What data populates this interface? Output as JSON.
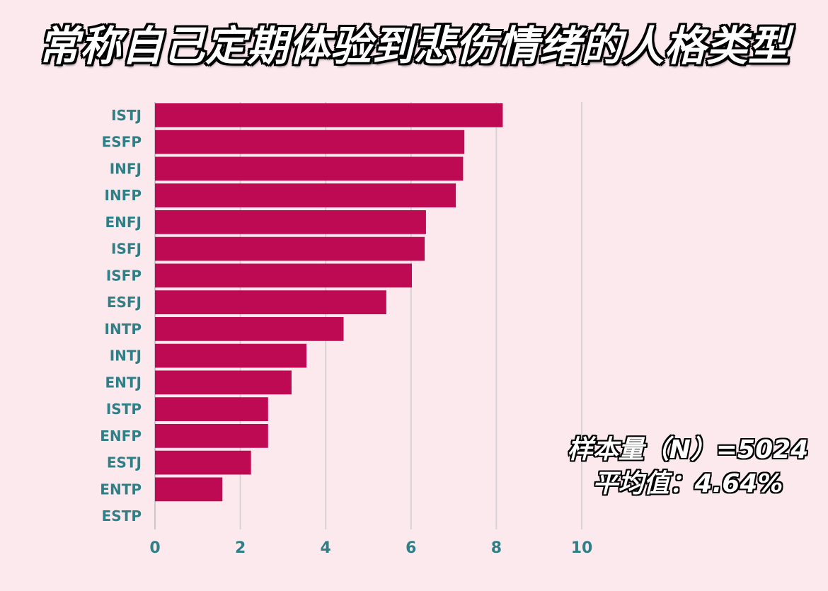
{
  "chart_data": {
    "type": "bar",
    "orientation": "horizontal",
    "title": "常称自己定期体验到悲伤情绪的人格类型",
    "categories": [
      "ISTJ",
      "ESFP",
      "INFJ",
      "INFP",
      "ENFJ",
      "ISFJ",
      "ISFP",
      "ESFJ",
      "INTP",
      "INTJ",
      "ENTJ",
      "ISTP",
      "ENFP",
      "ESTJ",
      "ENTP",
      "ESTP"
    ],
    "values": [
      8.15,
      7.25,
      7.22,
      7.05,
      6.35,
      6.32,
      6.02,
      5.42,
      4.42,
      3.55,
      3.2,
      2.65,
      2.65,
      2.25,
      1.58,
      0.0
    ],
    "xticks": [
      "0",
      "2",
      "4",
      "6",
      "8",
      "10"
    ],
    "xlim": [
      0,
      10
    ],
    "grid": true,
    "bar_color": "#bd0a52",
    "annotations": [
      "样本量（N）=5024",
      "平均值：4.64%"
    ]
  }
}
